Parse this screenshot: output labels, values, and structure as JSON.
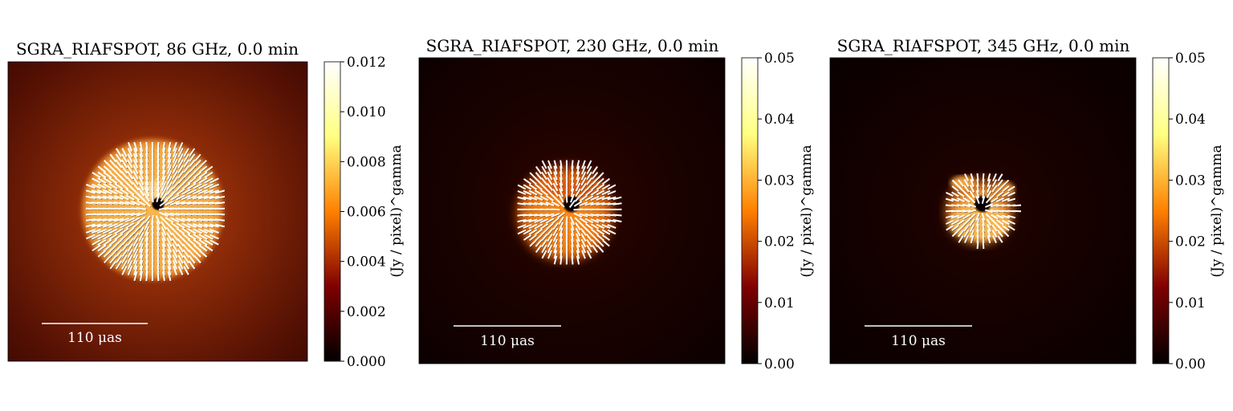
{
  "figure": {
    "background": "#ffffff"
  },
  "chart_data": [
    {
      "type": "heatmap",
      "title": "SGRA_RIAFSPOT, 86 GHz, 0.0 min",
      "colorbar_label": "(Jy / pixel)^gamma",
      "colorbar_range": [
        0,
        0.012
      ],
      "colorbar_ticks": [
        "0.000",
        "0.002",
        "0.004",
        "0.006",
        "0.008",
        "0.010",
        "0.012"
      ],
      "scalebar_label": "110 μas",
      "colormap": "afmhot",
      "polarization_ticks": true
    },
    {
      "type": "heatmap",
      "title": "SGRA_RIAFSPOT, 230 GHz, 0.0 min",
      "colorbar_label": "(Jy / pixel)^gamma",
      "colorbar_range": [
        0,
        0.05
      ],
      "colorbar_ticks": [
        "0.00",
        "0.01",
        "0.02",
        "0.03",
        "0.04",
        "0.05"
      ],
      "scalebar_label": "110 μas",
      "colormap": "afmhot",
      "polarization_ticks": true
    },
    {
      "type": "heatmap",
      "title": "SGRA_RIAFSPOT, 345 GHz, 0.0 min",
      "colorbar_label": "(Jy / pixel)^gamma",
      "colorbar_range": [
        0,
        0.05
      ],
      "colorbar_ticks": [
        "0.00",
        "0.01",
        "0.02",
        "0.03",
        "0.04",
        "0.05"
      ],
      "scalebar_label": "110 μas",
      "colormap": "afmhot",
      "polarization_ticks": true
    }
  ]
}
